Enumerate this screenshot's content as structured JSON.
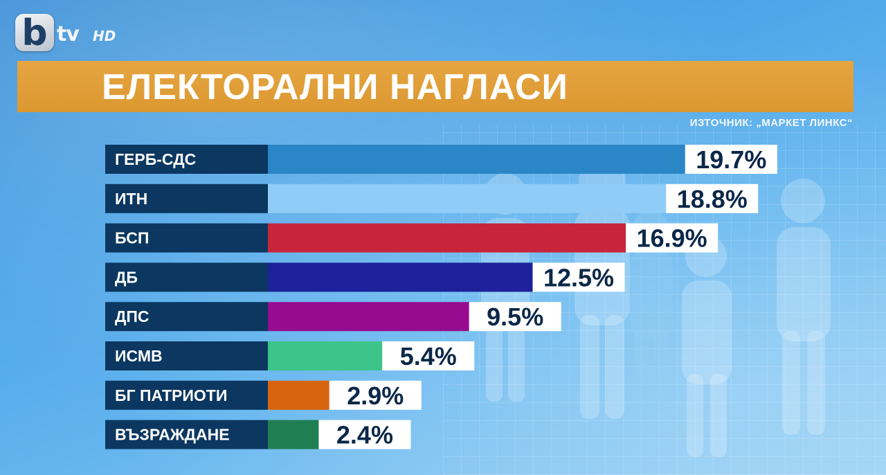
{
  "logo": {
    "mark": "b",
    "channel": "tv",
    "suffix": "HD"
  },
  "header": {
    "title": "ЕЛЕКТОРАЛНИ НАГЛАСИ"
  },
  "source": "ИЗТОЧНИК: „МАРКЕТ ЛИНКС“",
  "chart_data": {
    "type": "bar",
    "orientation": "horizontal",
    "categories": [
      "ГЕРБ-СДС",
      "ИТН",
      "БСП",
      "ДБ",
      "ДПС",
      "ИСМВ",
      "БГ ПАТРИОТИ",
      "ВЪЗРАЖДАНЕ"
    ],
    "values": [
      19.7,
      18.8,
      16.9,
      12.5,
      9.5,
      5.4,
      2.9,
      2.4
    ],
    "value_labels": [
      "19.7%",
      "18.8%",
      "16.9%",
      "12.5%",
      "9.5%",
      "5.4%",
      "2.9%",
      "2.4%"
    ],
    "colors": [
      "#2a86c6",
      "#8fcdf8",
      "#c8253a",
      "#1d219a",
      "#960b8f",
      "#3dc489",
      "#d96410",
      "#1f7f51"
    ],
    "unit": "%",
    "title": "",
    "xlabel": "",
    "ylabel": "",
    "grid": false,
    "legend": "none"
  }
}
